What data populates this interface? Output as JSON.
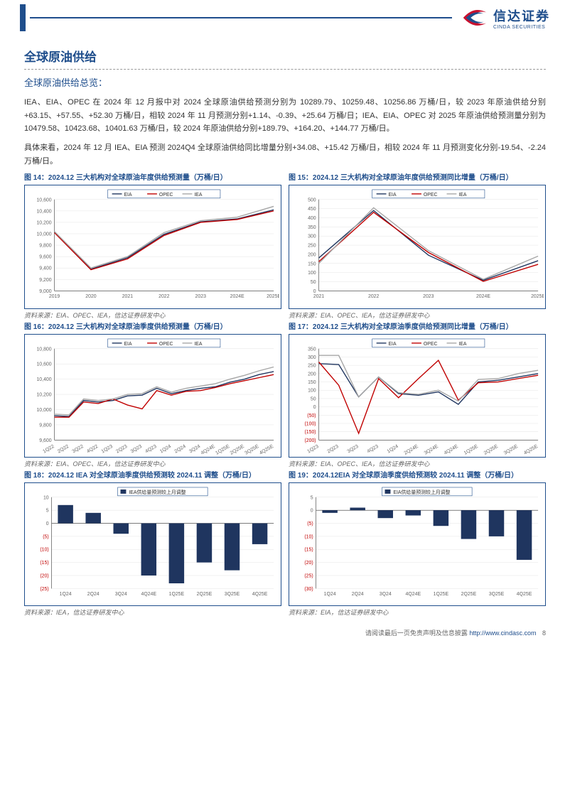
{
  "header": {
    "logo_cn": "信达证券",
    "logo_en": "CINDA SECURITIES"
  },
  "title": "全球原油供给",
  "subtitle": "全球原油供给总览：",
  "para1": "IEA、EIA、OPEC 在 2024 年 12 月报中对 2024 全球原油供给预测分别为 10289.79、10259.48、10256.86 万桶/日，较 2023 年原油供给分别+63.15、+57.55、+52.30 万桶/日，相较 2024 年 11 月预测分别+1.14、-0.39、+25.64 万桶/日；IEA、EIA、OPEC 对 2025 年原油供给预测量分别为 10479.58、10423.68、10401.63 万桶/日，较 2024 年原油供给分别+189.79、+164.20、+144.77 万桶/日。",
  "para2": "具体来看，2024 年 12 月 IEA、EIA 预测 2024Q4 全球原油供给同比增量分别+34.08、+15.42 万桶/日，相较 2024 年 11 月预测变化分别-19.54、-2.24 万桶/日。",
  "charts": {
    "c14": {
      "title": "图 14：2024.12 三大机构对全球原油年度供给预测量（万桶/日）",
      "source": "资料来源：EIA、OPEC、IEA，信达证券研发中心",
      "type": "line",
      "legend": [
        "EIA",
        "OPEC",
        "IEA"
      ],
      "colors": {
        "EIA": "#1f355f",
        "OPEC": "#c00000",
        "IEA": "#a6a6a6"
      },
      "x": [
        "2019",
        "2020",
        "2021",
        "2022",
        "2023",
        "2024E",
        "2025E"
      ],
      "ylim": [
        9000,
        10600
      ],
      "ytick_step": 200,
      "series": {
        "EIA": [
          10030,
          9380,
          9580,
          9990,
          10210,
          10260,
          10420
        ],
        "OPEC": [
          10020,
          9370,
          9560,
          9970,
          10200,
          10250,
          10400
        ],
        "IEA": [
          10040,
          9400,
          9600,
          10020,
          10230,
          10290,
          10480
        ]
      },
      "bg": "#ffffff",
      "grid_color": "#dddddd",
      "axis_color": "#333333",
      "font_size": 7
    },
    "c15": {
      "title": "图 15：2024.12 三大机构对全球原油年度供给预测同比增量（万桶/日）",
      "source": "资料来源：EIA、OPEC、IEA，信达证券研发中心",
      "type": "line",
      "legend": [
        "EIA",
        "OPEC",
        "IEA"
      ],
      "colors": {
        "EIA": "#1f355f",
        "OPEC": "#c00000",
        "IEA": "#a6a6a6"
      },
      "x": [
        "2021",
        "2022",
        "2023",
        "2024E",
        "2025E"
      ],
      "ylim": [
        0,
        500
      ],
      "ytick_step": 50,
      "series": {
        "EIA": [
          180,
          440,
          195,
          58,
          165
        ],
        "OPEC": [
          160,
          430,
          210,
          52,
          145
        ],
        "IEA": [
          150,
          455,
          220,
          63,
          190
        ]
      },
      "bg": "#ffffff"
    },
    "c16": {
      "title": "图 16：2024.12 三大机构对全球原油季度供给预测量（万桶/日）",
      "source": "资料来源：EIA、OPEC、IEA，信达证券研发中心",
      "type": "line",
      "legend": [
        "EIA",
        "OPEC",
        "IEA"
      ],
      "colors": {
        "EIA": "#1f355f",
        "OPEC": "#c00000",
        "IEA": "#a6a6a6"
      },
      "x": [
        "1Q22",
        "2Q22",
        "3Q22",
        "4Q22",
        "1Q23",
        "2Q23",
        "3Q23",
        "4Q23",
        "1Q24",
        "2Q24",
        "3Q24",
        "4Q24E",
        "1Q25E",
        "2Q25E",
        "3Q25E",
        "4Q25E"
      ],
      "ylim": [
        9600,
        10800
      ],
      "ytick_step": 200,
      "series": {
        "EIA": [
          9920,
          9910,
          10120,
          10100,
          10120,
          10180,
          10190,
          10280,
          10210,
          10250,
          10280,
          10300,
          10360,
          10400,
          10460,
          10500
        ],
        "OPEC": [
          9900,
          9900,
          10100,
          10080,
          10140,
          10060,
          10010,
          10250,
          10190,
          10240,
          10250,
          10290,
          10340,
          10380,
          10420,
          10460
        ],
        "IEA": [
          9940,
          9930,
          10140,
          10120,
          10140,
          10200,
          10210,
          10300,
          10230,
          10280,
          10310,
          10340,
          10400,
          10450,
          10510,
          10560
        ]
      },
      "bg": "#ffffff"
    },
    "c17": {
      "title": "图 17：2024.12 三大机构对全球原油季度供给预测同比增量（万桶/日）",
      "source": "资料来源：EIA、OPEC、IEA，信达证券研发中心",
      "type": "line",
      "legend": [
        "EIA",
        "OPEC",
        "IEA"
      ],
      "colors": {
        "EIA": "#1f355f",
        "OPEC": "#c00000",
        "IEA": "#a6a6a6"
      },
      "x": [
        "1Q23",
        "2Q23",
        "3Q23",
        "4Q23",
        "1Q24",
        "2Q24E",
        "3Q24E",
        "4Q24E",
        "1Q25E",
        "2Q25E",
        "3Q25E",
        "4Q25E"
      ],
      "ylim": [
        -200,
        350
      ],
      "ytick_step": 50,
      "neg_ticks": [
        -50,
        -100,
        -150,
        -200
      ],
      "series": {
        "EIA": [
          260,
          255,
          60,
          180,
          80,
          70,
          90,
          15,
          150,
          160,
          180,
          200
        ],
        "OPEC": [
          270,
          130,
          -160,
          170,
          55,
          170,
          280,
          40,
          145,
          150,
          170,
          190
        ],
        "IEA": [
          310,
          310,
          60,
          180,
          85,
          75,
          100,
          35,
          165,
          170,
          200,
          220
        ]
      },
      "bg": "#ffffff"
    },
    "c18": {
      "title": "图 18：2024.12 IEA 对全球原油季度供给预测较 2024.11 调整（万桶/日）",
      "source": "资料来源：IEA，信达证券研发中心",
      "type": "bar",
      "legend": [
        "IEA供给量预测较上月调整"
      ],
      "colors": {
        "bar": "#1f355f"
      },
      "x": [
        "1Q24",
        "2Q24",
        "3Q24",
        "4Q24E",
        "1Q25E",
        "2Q25E",
        "3Q25E",
        "4Q25E"
      ],
      "ylim": [
        -25,
        10
      ],
      "ytick_step": 5,
      "neg_ticks": [
        -5,
        -10,
        -15,
        -20,
        -25
      ],
      "values": [
        7,
        4,
        -4,
        -20,
        -23,
        -15,
        -18,
        -8
      ],
      "bar_width": 0.55,
      "bg": "#ffffff"
    },
    "c19": {
      "title": "图 19：2024.12EIA 对全球原油季度供给预测较 2024.11 调整（万桶/日）",
      "source": "资料来源：EIA，信达证券研发中心",
      "type": "bar",
      "legend": [
        "EIA供给量预测较上月调整"
      ],
      "colors": {
        "bar": "#1f355f"
      },
      "x": [
        "1Q24",
        "2Q24",
        "3Q24",
        "4Q24E",
        "1Q25E",
        "2Q25E",
        "3Q25E",
        "4Q25E"
      ],
      "ylim": [
        -30,
        5
      ],
      "ytick_step": 5,
      "neg_ticks": [
        -5,
        -10,
        -15,
        -20,
        -25,
        -30
      ],
      "values": [
        -1,
        1,
        -3,
        -2,
        -6,
        -11,
        -10,
        -19
      ],
      "bar_width": 0.55,
      "bg": "#ffffff"
    }
  },
  "footer": {
    "text": "请阅读最后一页免责声明及信息披露",
    "url": "http://www.cindasc.com",
    "page": "8"
  }
}
